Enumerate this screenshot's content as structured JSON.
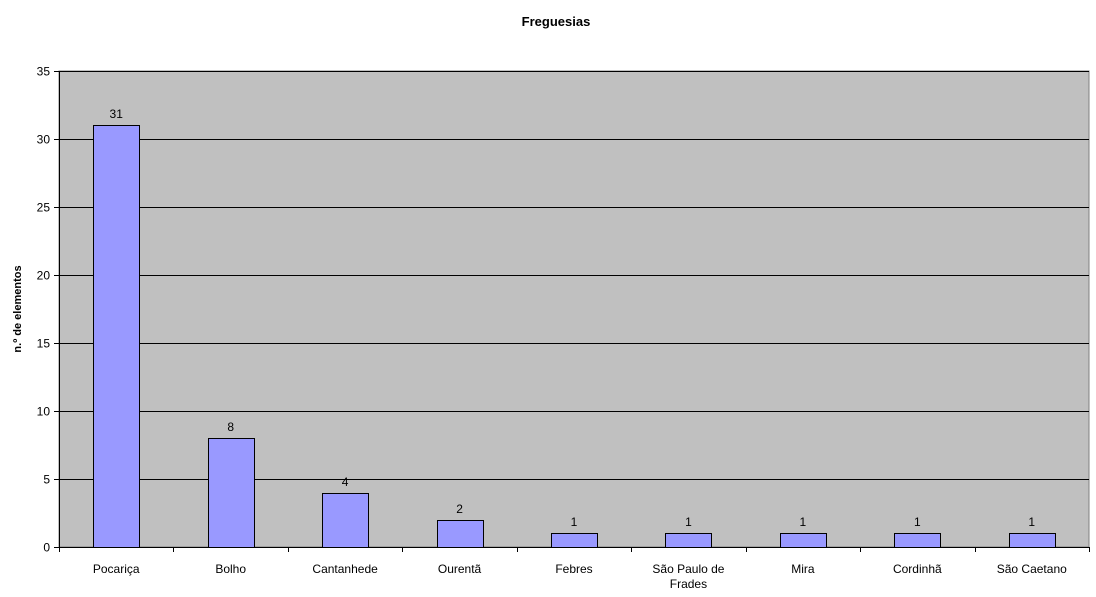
{
  "chart_data": {
    "type": "bar",
    "title": "Freguesias",
    "xlabel": "",
    "ylabel": "n.º de elementos",
    "categories": [
      "Pocariça",
      "Bolho",
      "Cantanhede",
      "Ourentã",
      "Febres",
      "São Paulo de Frades",
      "Mira",
      "Cordinhã",
      "São Caetano"
    ],
    "category_label_lines": [
      [
        "Pocariça"
      ],
      [
        "Bolho"
      ],
      [
        "Cantanhede"
      ],
      [
        "Ourentã"
      ],
      [
        "Febres"
      ],
      [
        "São Paulo de",
        "Frades"
      ],
      [
        "Mira"
      ],
      [
        "Cordinhã"
      ],
      [
        "São Caetano"
      ]
    ],
    "values": [
      31,
      8,
      4,
      2,
      1,
      1,
      1,
      1,
      1
    ],
    "ylim": [
      0,
      35
    ],
    "yticks": [
      0,
      5,
      10,
      15,
      20,
      25,
      30,
      35
    ],
    "grid": true,
    "legend": "none",
    "data_labels": true,
    "colors": {
      "bar_fill": "#9999ff",
      "bar_stroke": "#000000",
      "plot_background": "#c0c0c0",
      "gridline": "#000000",
      "page_background": "#ffffff"
    }
  }
}
